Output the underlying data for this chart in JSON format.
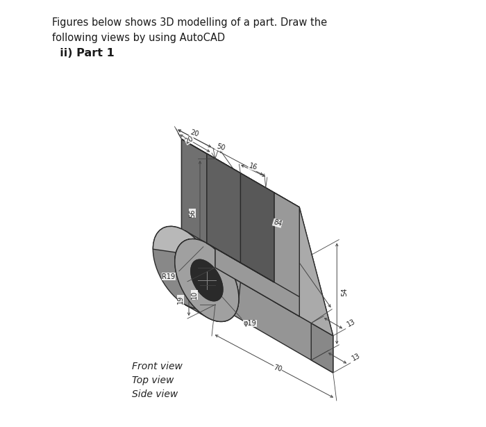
{
  "title_line1": "Figures below shows 3D modelling of a part. Draw the",
  "title_line2": "following views by using AutoCAD",
  "title_line3": "  ii) Part 1",
  "footer_lines": [
    "Front view",
    "Top view",
    "Side view"
  ],
  "bg_color": "#ffffff",
  "lc": "#2a2a2a",
  "c_top": "#c0c0c0",
  "c_left": "#707070",
  "c_front": "#999999",
  "c_dark": "#4a4a4a",
  "c_slot_back": "#606060",
  "c_gusset": "#aaaaaa",
  "c_base_top": "#b8b8b8",
  "c_base_front": "#959595",
  "c_cyl": "#888888",
  "c_hole": "#2a2a2a",
  "dim_c": "#444444"
}
